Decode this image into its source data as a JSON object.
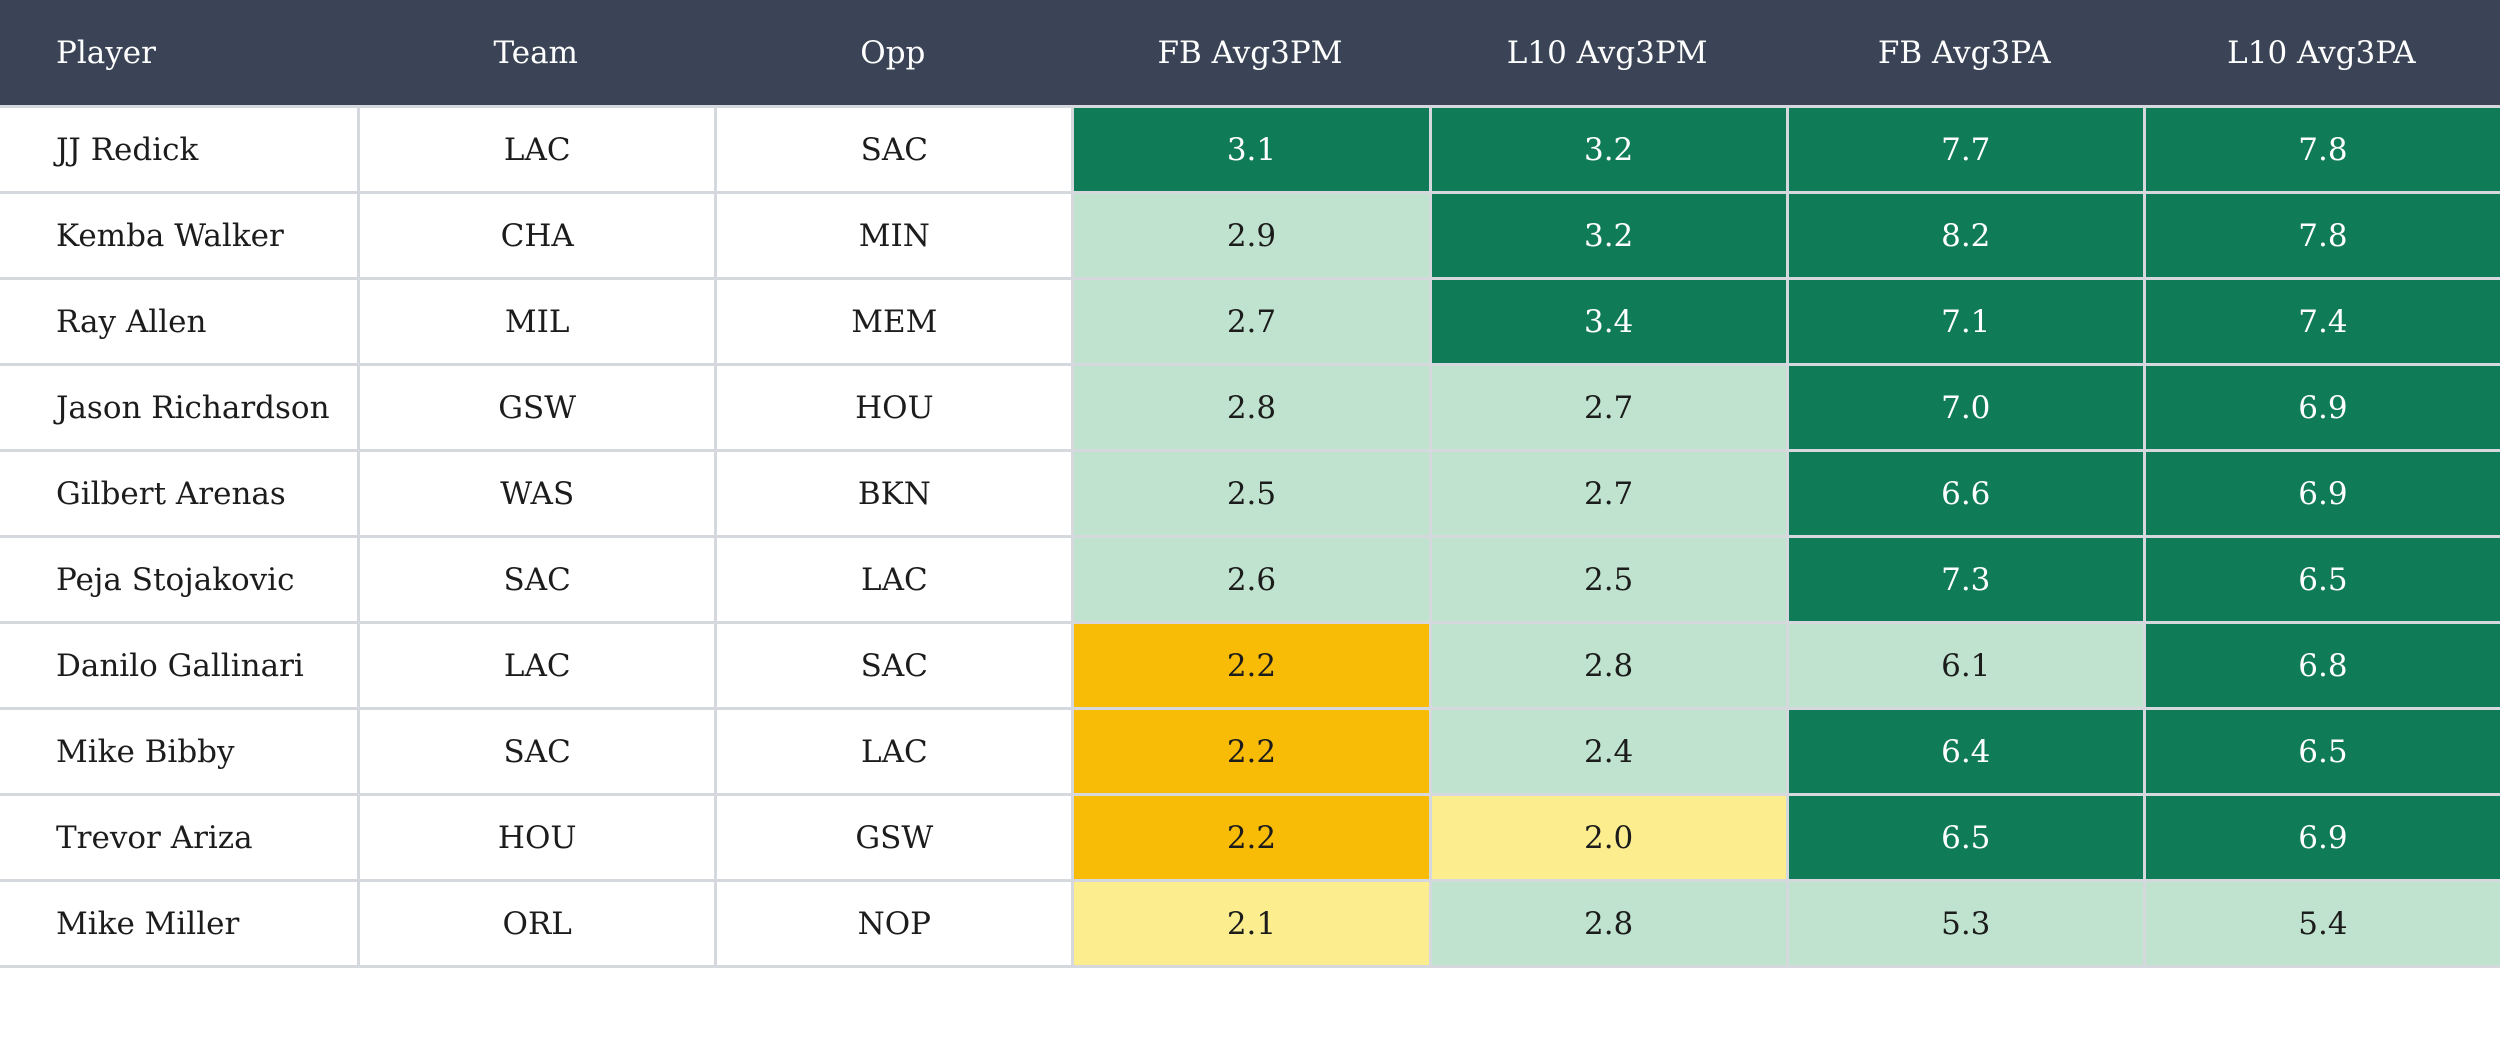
{
  "colors": {
    "header_bg": "#3A4456",
    "header_text": "#FFFFFF",
    "green": "#107C57",
    "light_green": "#BFE3CE",
    "amber": "#F8BB06",
    "yellow": "#FCEE8E",
    "grid": "#D5D9DE",
    "text": "#1C1C1C"
  },
  "chart_data": {
    "type": "table",
    "layout": "heatmap-table, header row dark slate, 7 equal columns, cell color encodes value tier (green=high, light_green=mid, amber=low, yellow=lowest)",
    "columns": [
      "Player",
      "Team",
      "Opp",
      "FB Avg3PM",
      "L10 Avg3PM",
      "FB Avg3PA",
      "L10 Avg3PA"
    ],
    "rows": [
      {
        "player": "JJ Redick",
        "team": "LAC",
        "opp": "SAC",
        "stats": [
          {
            "v": "3.1",
            "tone": "green"
          },
          {
            "v": "3.2",
            "tone": "green"
          },
          {
            "v": "7.7",
            "tone": "green"
          },
          {
            "v": "7.8",
            "tone": "green"
          }
        ]
      },
      {
        "player": "Kemba Walker",
        "team": "CHA",
        "opp": "MIN",
        "stats": [
          {
            "v": "2.9",
            "tone": "light_green"
          },
          {
            "v": "3.2",
            "tone": "green"
          },
          {
            "v": "8.2",
            "tone": "green"
          },
          {
            "v": "7.8",
            "tone": "green"
          }
        ]
      },
      {
        "player": "Ray Allen",
        "team": "MIL",
        "opp": "MEM",
        "stats": [
          {
            "v": "2.7",
            "tone": "light_green"
          },
          {
            "v": "3.4",
            "tone": "green"
          },
          {
            "v": "7.1",
            "tone": "green"
          },
          {
            "v": "7.4",
            "tone": "green"
          }
        ]
      },
      {
        "player": "Jason Richardson",
        "team": "GSW",
        "opp": "HOU",
        "stats": [
          {
            "v": "2.8",
            "tone": "light_green"
          },
          {
            "v": "2.7",
            "tone": "light_green"
          },
          {
            "v": "7.0",
            "tone": "green"
          },
          {
            "v": "6.9",
            "tone": "green"
          }
        ]
      },
      {
        "player": "Gilbert Arenas",
        "team": "WAS",
        "opp": "BKN",
        "stats": [
          {
            "v": "2.5",
            "tone": "light_green"
          },
          {
            "v": "2.7",
            "tone": "light_green"
          },
          {
            "v": "6.6",
            "tone": "green"
          },
          {
            "v": "6.9",
            "tone": "green"
          }
        ]
      },
      {
        "player": "Peja Stojakovic",
        "team": "SAC",
        "opp": "LAC",
        "stats": [
          {
            "v": "2.6",
            "tone": "light_green"
          },
          {
            "v": "2.5",
            "tone": "light_green"
          },
          {
            "v": "7.3",
            "tone": "green"
          },
          {
            "v": "6.5",
            "tone": "green"
          }
        ]
      },
      {
        "player": "Danilo Gallinari",
        "team": "LAC",
        "opp": "SAC",
        "stats": [
          {
            "v": "2.2",
            "tone": "amber"
          },
          {
            "v": "2.8",
            "tone": "light_green"
          },
          {
            "v": "6.1",
            "tone": "light_green"
          },
          {
            "v": "6.8",
            "tone": "green"
          }
        ]
      },
      {
        "player": "Mike Bibby",
        "team": "SAC",
        "opp": "LAC",
        "stats": [
          {
            "v": "2.2",
            "tone": "amber"
          },
          {
            "v": "2.4",
            "tone": "light_green"
          },
          {
            "v": "6.4",
            "tone": "green"
          },
          {
            "v": "6.5",
            "tone": "green"
          }
        ]
      },
      {
        "player": "Trevor Ariza",
        "team": "HOU",
        "opp": "GSW",
        "stats": [
          {
            "v": "2.2",
            "tone": "amber"
          },
          {
            "v": "2.0",
            "tone": "yellow"
          },
          {
            "v": "6.5",
            "tone": "green"
          },
          {
            "v": "6.9",
            "tone": "green"
          }
        ]
      },
      {
        "player": "Mike Miller",
        "team": "ORL",
        "opp": "NOP",
        "stats": [
          {
            "v": "2.1",
            "tone": "yellow"
          },
          {
            "v": "2.8",
            "tone": "light_green"
          },
          {
            "v": "5.3",
            "tone": "light_green"
          },
          {
            "v": "5.4",
            "tone": "light_green"
          }
        ]
      }
    ]
  }
}
